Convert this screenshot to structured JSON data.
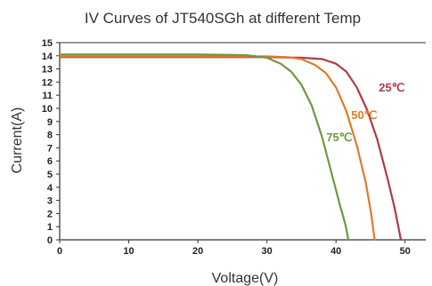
{
  "chart_data": {
    "type": "line",
    "title": "IV Curves of JT540SGh at different Temp",
    "xlabel": "Voltage(V)",
    "ylabel": "Current(A)",
    "xlim": [
      0,
      53
    ],
    "ylim": [
      0,
      15
    ],
    "xticks": [
      0,
      10,
      20,
      30,
      40,
      50
    ],
    "yticks": [
      0,
      1,
      2,
      3,
      4,
      5,
      6,
      7,
      8,
      9,
      10,
      11,
      12,
      13,
      14,
      15
    ],
    "grid": false,
    "series": [
      {
        "name": "25℃",
        "color": "#b03a48",
        "x": [
          0,
          10,
          20,
          30,
          35,
          38,
          40,
          41.5,
          43,
          44.5,
          46,
          47.5,
          48.5,
          49.4
        ],
        "y": [
          13.9,
          13.9,
          13.9,
          13.9,
          13.85,
          13.75,
          13.4,
          12.8,
          11.6,
          9.9,
          7.6,
          4.6,
          2.4,
          0
        ]
      },
      {
        "name": "50℃",
        "color": "#e07b26",
        "x": [
          0,
          10,
          20,
          30,
          33,
          35,
          37,
          38.5,
          40,
          41.5,
          43,
          44.3,
          45.1,
          45.6
        ],
        "y": [
          13.95,
          13.95,
          13.95,
          13.95,
          13.9,
          13.75,
          13.3,
          12.7,
          11.6,
          9.8,
          7.2,
          4.4,
          2.0,
          0
        ]
      },
      {
        "name": "75℃",
        "color": "#6e9a3c",
        "x": [
          0,
          10,
          20,
          27,
          30,
          32,
          33.5,
          35,
          36.5,
          38,
          39.5,
          40.6,
          41.4,
          41.8
        ],
        "y": [
          14.1,
          14.1,
          14.1,
          14.05,
          13.85,
          13.4,
          12.8,
          11.8,
          10.2,
          7.8,
          4.8,
          2.6,
          1.1,
          0
        ]
      }
    ]
  }
}
